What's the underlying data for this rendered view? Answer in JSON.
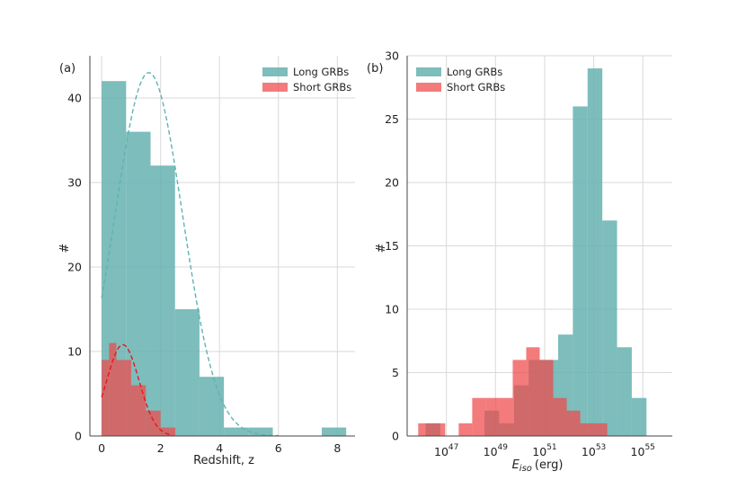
{
  "colors": {
    "long": "#66b2b0",
    "short": "#f0484a",
    "long_fit": "#5fb3b1",
    "short_fit": "#e8161d",
    "grid": "#d9d9d9",
    "axis": "#444444"
  },
  "chart_data": [
    {
      "panel_label": "(a)",
      "type": "histogram",
      "xlabel": "Redshift, z",
      "ylabel": "#",
      "xlim": [
        -0.4,
        8.6
      ],
      "ylim": [
        0,
        45
      ],
      "xticks": [
        0,
        2,
        4,
        6,
        8
      ],
      "xtick_labels": [
        "0",
        "2",
        "4",
        "6",
        "8"
      ],
      "yticks": [
        0,
        10,
        20,
        30,
        40
      ],
      "ytick_labels": [
        "0",
        "10",
        "20",
        "30",
        "40"
      ],
      "legend_position": "top-right",
      "series": [
        {
          "name": "Long GRBs",
          "color_key": "long",
          "bins": [
            {
              "x0": 0.0,
              "x1": 0.83,
              "count": 42
            },
            {
              "x0": 0.83,
              "x1": 1.66,
              "count": 36
            },
            {
              "x0": 1.66,
              "x1": 2.49,
              "count": 32
            },
            {
              "x0": 2.49,
              "x1": 3.32,
              "count": 15
            },
            {
              "x0": 3.32,
              "x1": 4.15,
              "count": 7
            },
            {
              "x0": 4.15,
              "x1": 4.98,
              "count": 1
            },
            {
              "x0": 4.98,
              "x1": 5.81,
              "count": 1
            },
            {
              "x0": 5.81,
              "x1": 6.64,
              "count": 0
            },
            {
              "x0": 6.64,
              "x1": 7.47,
              "count": 0
            },
            {
              "x0": 7.47,
              "x1": 8.3,
              "count": 1
            }
          ]
        },
        {
          "name": "Short GRBs",
          "color_key": "short",
          "bins": [
            {
              "x0": 0.0,
              "x1": 0.25,
              "count": 9
            },
            {
              "x0": 0.25,
              "x1": 0.5,
              "count": 11
            },
            {
              "x0": 0.5,
              "x1": 1.0,
              "count": 9
            },
            {
              "x0": 1.0,
              "x1": 1.5,
              "count": 6
            },
            {
              "x0": 1.5,
              "x1": 2.0,
              "count": 3
            },
            {
              "x0": 2.0,
              "x1": 2.5,
              "count": 1
            }
          ]
        }
      ],
      "fits": [
        {
          "name": "Long GRBs fit",
          "color_key": "long_fit",
          "type": "gaussian",
          "amplitude": 43,
          "mean": 1.6,
          "sigma": 1.15,
          "x_range": [
            0,
            6
          ]
        },
        {
          "name": "Short GRBs fit",
          "color_key": "short_fit",
          "type": "gaussian",
          "amplitude": 10.8,
          "mean": 0.72,
          "sigma": 0.55,
          "x_range": [
            0,
            2.4
          ]
        }
      ]
    },
    {
      "panel_label": "(b)",
      "type": "histogram",
      "xlabel_main": "E",
      "xlabel_sub": "iso",
      "xlabel_unit": "(erg)",
      "ylabel": "#",
      "x_scale": "log10",
      "xlim": [
        45.4,
        56.2
      ],
      "ylim": [
        0,
        30
      ],
      "xticks": [
        47,
        49,
        51,
        53,
        55
      ],
      "xtick_base": "10",
      "xtick_exponents": [
        "47",
        "49",
        "51",
        "53",
        "55"
      ],
      "yticks": [
        0,
        5,
        10,
        15,
        20,
        25,
        30
      ],
      "ytick_labels": [
        "0",
        "5",
        "10",
        "15",
        "20",
        "25",
        "30"
      ],
      "legend_position": "top-left",
      "series": [
        {
          "name": "Long GRBs",
          "color_key": "long",
          "bins": [
            {
              "x0": 46.15,
              "x1": 46.75,
              "count": 1
            },
            {
              "x0": 46.75,
              "x1": 47.35,
              "count": 0
            },
            {
              "x0": 47.35,
              "x1": 47.95,
              "count": 0
            },
            {
              "x0": 47.95,
              "x1": 48.55,
              "count": 0
            },
            {
              "x0": 48.55,
              "x1": 49.15,
              "count": 2
            },
            {
              "x0": 49.15,
              "x1": 49.75,
              "count": 1
            },
            {
              "x0": 49.75,
              "x1": 50.35,
              "count": 4
            },
            {
              "x0": 50.35,
              "x1": 50.95,
              "count": 6
            },
            {
              "x0": 50.95,
              "x1": 51.55,
              "count": 6
            },
            {
              "x0": 51.55,
              "x1": 52.15,
              "count": 8
            },
            {
              "x0": 52.15,
              "x1": 52.75,
              "count": 26
            },
            {
              "x0": 52.75,
              "x1": 53.35,
              "count": 29
            },
            {
              "x0": 53.35,
              "x1": 53.95,
              "count": 17
            },
            {
              "x0": 53.95,
              "x1": 54.55,
              "count": 7
            },
            {
              "x0": 54.55,
              "x1": 55.15,
              "count": 3
            }
          ]
        },
        {
          "name": "Short GRBs",
          "color_key": "short",
          "bins": [
            {
              "x0": 45.85,
              "x1": 46.4,
              "count": 1
            },
            {
              "x0": 46.4,
              "x1": 46.95,
              "count": 1
            },
            {
              "x0": 46.95,
              "x1": 47.5,
              "count": 0
            },
            {
              "x0": 47.5,
              "x1": 48.05,
              "count": 1
            },
            {
              "x0": 48.05,
              "x1": 48.6,
              "count": 3
            },
            {
              "x0": 48.6,
              "x1": 49.15,
              "count": 3
            },
            {
              "x0": 49.15,
              "x1": 49.7,
              "count": 3
            },
            {
              "x0": 49.7,
              "x1": 50.25,
              "count": 6
            },
            {
              "x0": 50.25,
              "x1": 50.8,
              "count": 7
            },
            {
              "x0": 50.8,
              "x1": 51.35,
              "count": 6
            },
            {
              "x0": 51.35,
              "x1": 51.9,
              "count": 3
            },
            {
              "x0": 51.9,
              "x1": 52.45,
              "count": 2
            },
            {
              "x0": 52.45,
              "x1": 53.0,
              "count": 1
            },
            {
              "x0": 53.0,
              "x1": 53.55,
              "count": 1
            }
          ]
        }
      ]
    }
  ]
}
